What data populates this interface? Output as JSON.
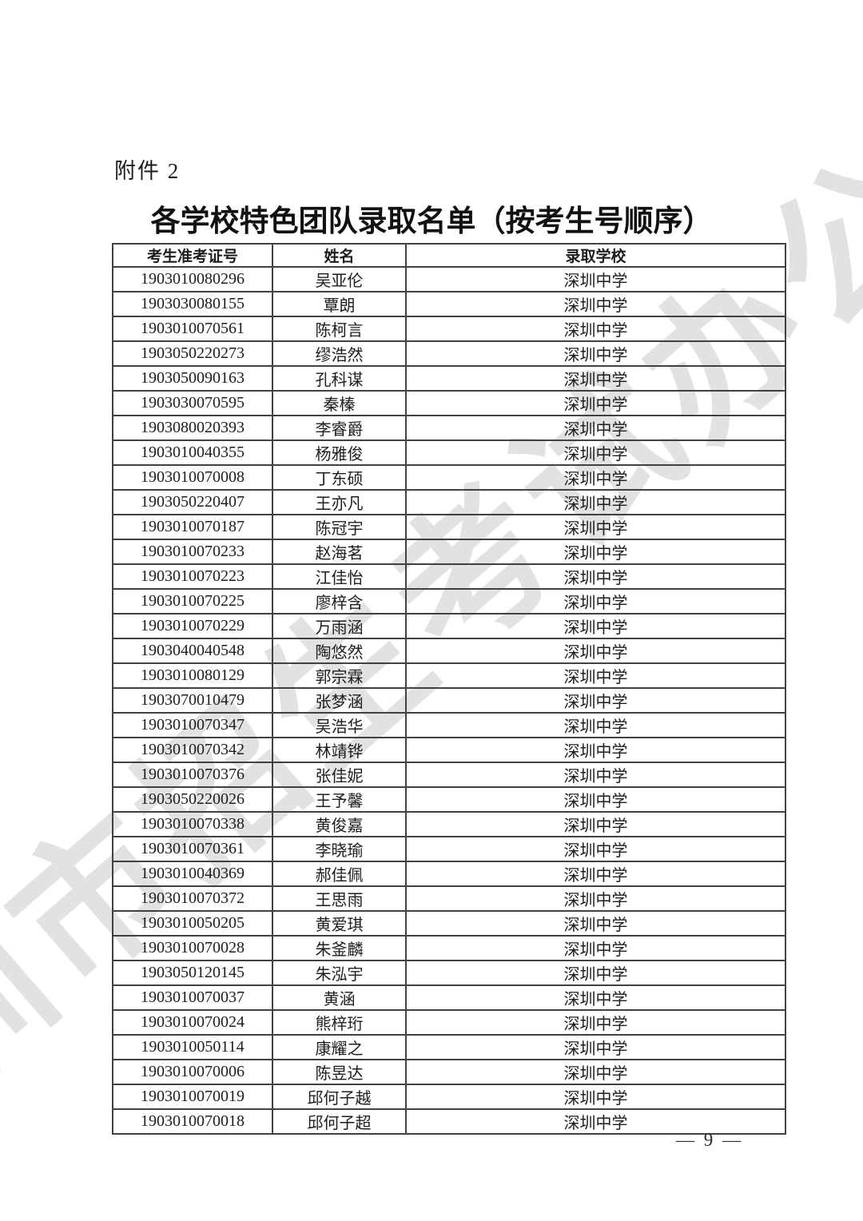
{
  "attachment_label": "附件 2",
  "title": "各学校特色团队录取名单（按考生号顺序）",
  "watermark": {
    "text": "深圳市招生考试办公室"
  },
  "page_number": "— 9 —",
  "colors": {
    "page_background": "#ffffff",
    "text": "#1d1d1d",
    "table_border": "#414141",
    "watermark": "#9aa0a8"
  },
  "table": {
    "headers": [
      "考生准考证号",
      "姓名",
      "录取学校"
    ],
    "rows": [
      [
        "1903010080296",
        "吴亚伦",
        "深圳中学"
      ],
      [
        "1903030080155",
        "覃朗",
        "深圳中学"
      ],
      [
        "1903010070561",
        "陈柯言",
        "深圳中学"
      ],
      [
        "1903050220273",
        "缪浩然",
        "深圳中学"
      ],
      [
        "1903050090163",
        "孔科谋",
        "深圳中学"
      ],
      [
        "1903030070595",
        "秦榛",
        "深圳中学"
      ],
      [
        "1903080020393",
        "李睿爵",
        "深圳中学"
      ],
      [
        "1903010040355",
        "杨雅俊",
        "深圳中学"
      ],
      [
        "1903010070008",
        "丁东硕",
        "深圳中学"
      ],
      [
        "1903050220407",
        "王亦凡",
        "深圳中学"
      ],
      [
        "1903010070187",
        "陈冠宇",
        "深圳中学"
      ],
      [
        "1903010070233",
        "赵海茗",
        "深圳中学"
      ],
      [
        "1903010070223",
        "江佳怡",
        "深圳中学"
      ],
      [
        "1903010070225",
        "廖梓含",
        "深圳中学"
      ],
      [
        "1903010070229",
        "万雨涵",
        "深圳中学"
      ],
      [
        "1903040040548",
        "陶悠然",
        "深圳中学"
      ],
      [
        "1903010080129",
        "郭宗霖",
        "深圳中学"
      ],
      [
        "1903070010479",
        "张梦涵",
        "深圳中学"
      ],
      [
        "1903010070347",
        "吴浩华",
        "深圳中学"
      ],
      [
        "1903010070342",
        "林靖铧",
        "深圳中学"
      ],
      [
        "1903010070376",
        "张佳妮",
        "深圳中学"
      ],
      [
        "1903050220026",
        "王予馨",
        "深圳中学"
      ],
      [
        "1903010070338",
        "黄俊嘉",
        "深圳中学"
      ],
      [
        "1903010070361",
        "李晓瑜",
        "深圳中学"
      ],
      [
        "1903010040369",
        "郝佳佩",
        "深圳中学"
      ],
      [
        "1903010070372",
        "王思雨",
        "深圳中学"
      ],
      [
        "1903010050205",
        "黄爱琪",
        "深圳中学"
      ],
      [
        "1903010070028",
        "朱釜麟",
        "深圳中学"
      ],
      [
        "1903050120145",
        "朱泓宇",
        "深圳中学"
      ],
      [
        "1903010070037",
        "黄涵",
        "深圳中学"
      ],
      [
        "1903010070024",
        "熊梓珩",
        "深圳中学"
      ],
      [
        "1903010050114",
        "康耀之",
        "深圳中学"
      ],
      [
        "1903010070006",
        "陈昱达",
        "深圳中学"
      ],
      [
        "1903010070019",
        "邱何子越",
        "深圳中学"
      ],
      [
        "1903010070018",
        "邱何子超",
        "深圳中学"
      ]
    ]
  }
}
